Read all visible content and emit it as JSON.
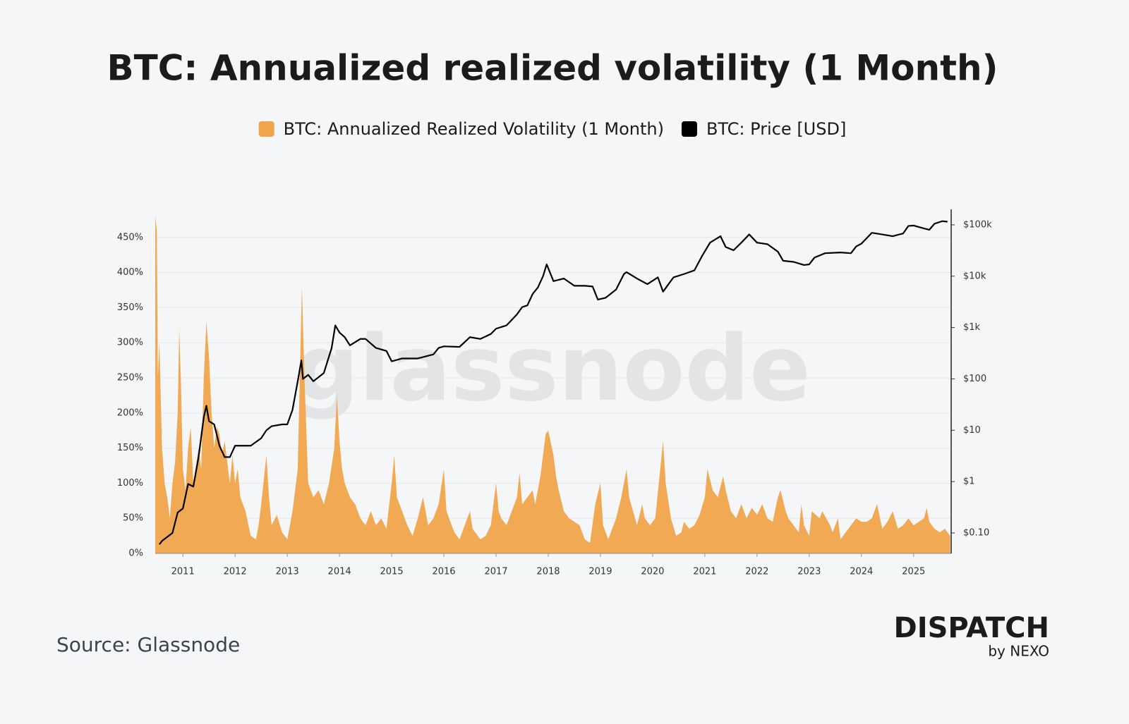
{
  "chart_data": {
    "type": "combo",
    "title": "BTC: Annualized realized volatility (1 Month)",
    "watermark": "glassnode",
    "source": "Source: Glassnode",
    "brand": "DISPATCH",
    "brand_sub": "by NEXO",
    "xlim": [
      2010.47,
      2025.72
    ],
    "xticks": [
      2011,
      2012,
      2013,
      2014,
      2015,
      2016,
      2017,
      2018,
      2019,
      2020,
      2021,
      2022,
      2023,
      2024,
      2025
    ],
    "ylim": [
      0,
      490
    ],
    "yticks": [
      {
        "value": 0,
        "label": "0%"
      },
      {
        "value": 50,
        "label": "50%"
      },
      {
        "value": 100,
        "label": "100%"
      },
      {
        "value": 150,
        "label": "150%"
      },
      {
        "value": 200,
        "label": "200%"
      },
      {
        "value": 250,
        "label": "250%"
      },
      {
        "value": 300,
        "label": "300%"
      },
      {
        "value": 350,
        "label": "350%"
      },
      {
        "value": 400,
        "label": "400%"
      },
      {
        "value": 450,
        "label": "450%"
      }
    ],
    "y2lim": [
      0.04,
      200000
    ],
    "y2scale": "log",
    "y2ticks": [
      {
        "value": 0.1,
        "label": "$0.10"
      },
      {
        "value": 1,
        "label": "$1"
      },
      {
        "value": 10,
        "label": "$10"
      },
      {
        "value": 100,
        "label": "$100"
      },
      {
        "value": 1000,
        "label": "$1k"
      },
      {
        "value": 10000,
        "label": "$10k"
      },
      {
        "value": 100000,
        "label": "$100k"
      }
    ],
    "grid": true,
    "series": [
      {
        "name": "BTC: Annualized Realized Volatility (1 Month)",
        "type": "area",
        "color": "#f0a54a",
        "x": [
          2010.47,
          2010.5,
          2010.52,
          2010.55,
          2010.6,
          2010.65,
          2010.7,
          2010.75,
          2010.8,
          2010.85,
          2010.9,
          2010.93,
          2010.96,
          2011.0,
          2011.05,
          2011.1,
          2011.15,
          2011.2,
          2011.3,
          2011.35,
          2011.4,
          2011.45,
          2011.5,
          2011.55,
          2011.6,
          2011.65,
          2011.7,
          2011.75,
          2011.8,
          2011.85,
          2011.9,
          2011.95,
          2012.0,
          2012.05,
          2012.1,
          2012.2,
          2012.3,
          2012.4,
          2012.45,
          2012.5,
          2012.6,
          2012.65,
          2012.7,
          2012.8,
          2012.9,
          2013.0,
          2013.1,
          2013.2,
          2013.28,
          2013.33,
          2013.4,
          2013.5,
          2013.6,
          2013.7,
          2013.8,
          2013.9,
          2013.95,
          2014.0,
          2014.05,
          2014.1,
          2014.2,
          2014.3,
          2014.4,
          2014.5,
          2014.6,
          2014.7,
          2014.8,
          2014.9,
          2015.0,
          2015.05,
          2015.1,
          2015.2,
          2015.3,
          2015.4,
          2015.5,
          2015.6,
          2015.7,
          2015.8,
          2015.9,
          2016.0,
          2016.05,
          2016.2,
          2016.3,
          2016.4,
          2016.5,
          2016.55,
          2016.7,
          2016.8,
          2016.9,
          2017.0,
          2017.05,
          2017.1,
          2017.2,
          2017.3,
          2017.4,
          2017.45,
          2017.5,
          2017.6,
          2017.7,
          2017.75,
          2017.85,
          2017.95,
          2018.0,
          2018.1,
          2018.15,
          2018.2,
          2018.3,
          2018.4,
          2018.5,
          2018.6,
          2018.7,
          2018.8,
          2018.9,
          2019.0,
          2019.05,
          2019.15,
          2019.3,
          2019.4,
          2019.5,
          2019.55,
          2019.7,
          2019.8,
          2019.85,
          2019.95,
          2020.05,
          2020.2,
          2020.25,
          2020.35,
          2020.45,
          2020.55,
          2020.6,
          2020.7,
          2020.8,
          2020.9,
          2021.0,
          2021.05,
          2021.15,
          2021.25,
          2021.35,
          2021.4,
          2021.5,
          2021.6,
          2021.7,
          2021.8,
          2021.9,
          2022.0,
          2022.1,
          2022.2,
          2022.3,
          2022.4,
          2022.45,
          2022.55,
          2022.6,
          2022.7,
          2022.8,
          2022.85,
          2022.9,
          2023.0,
          2023.05,
          2023.2,
          2023.25,
          2023.4,
          2023.45,
          2023.55,
          2023.6,
          2023.7,
          2023.8,
          2023.9,
          2024.0,
          2024.1,
          2024.2,
          2024.3,
          2024.4,
          2024.5,
          2024.6,
          2024.7,
          2024.8,
          2024.9,
          2025.0,
          2025.1,
          2025.2,
          2025.25,
          2025.3,
          2025.4,
          2025.5,
          2025.6,
          2025.7
        ],
        "values": [
          480,
          460,
          250,
          300,
          150,
          100,
          80,
          50,
          100,
          130,
          200,
          320,
          250,
          120,
          90,
          150,
          180,
          100,
          150,
          120,
          250,
          330,
          280,
          200,
          150,
          180,
          170,
          140,
          160,
          130,
          100,
          140,
          100,
          120,
          80,
          60,
          25,
          20,
          40,
          70,
          140,
          80,
          40,
          55,
          30,
          20,
          60,
          120,
          380,
          250,
          100,
          80,
          90,
          70,
          100,
          150,
          225,
          160,
          120,
          100,
          80,
          70,
          50,
          40,
          60,
          40,
          50,
          35,
          100,
          140,
          80,
          60,
          40,
          25,
          50,
          80,
          40,
          50,
          70,
          120,
          60,
          30,
          20,
          40,
          60,
          35,
          20,
          25,
          40,
          100,
          60,
          50,
          40,
          60,
          80,
          115,
          70,
          80,
          90,
          70,
          110,
          170,
          175,
          140,
          110,
          90,
          60,
          50,
          45,
          40,
          20,
          15,
          70,
          100,
          40,
          20,
          50,
          80,
          120,
          80,
          40,
          70,
          50,
          40,
          50,
          160,
          100,
          50,
          25,
          30,
          45,
          35,
          40,
          55,
          80,
          120,
          90,
          80,
          110,
          90,
          60,
          50,
          70,
          50,
          65,
          55,
          70,
          50,
          45,
          80,
          90,
          60,
          50,
          40,
          30,
          70,
          40,
          25,
          60,
          50,
          60,
          40,
          30,
          50,
          20,
          30,
          40,
          50,
          45,
          45,
          50,
          70,
          35,
          45,
          60,
          35,
          40,
          50,
          40,
          45,
          50,
          65,
          45,
          35,
          30,
          35,
          25
        ]
      },
      {
        "name": "BTC: Price [USD]",
        "type": "line",
        "color": "#000000",
        "axis": "y2",
        "x": [
          2010.55,
          2010.6,
          2010.8,
          2010.9,
          2011.0,
          2011.1,
          2011.2,
          2011.3,
          2011.4,
          2011.45,
          2011.5,
          2011.6,
          2011.7,
          2011.8,
          2011.9,
          2012.0,
          2012.1,
          2012.3,
          2012.5,
          2012.6,
          2012.7,
          2012.9,
          2013.0,
          2013.1,
          2013.2,
          2013.27,
          2013.3,
          2013.4,
          2013.5,
          2013.7,
          2013.85,
          2013.92,
          2014.0,
          2014.1,
          2014.2,
          2014.4,
          2014.5,
          2014.7,
          2014.9,
          2015.0,
          2015.2,
          2015.5,
          2015.8,
          2015.9,
          2016.0,
          2016.3,
          2016.5,
          2016.7,
          2016.9,
          2017.0,
          2017.2,
          2017.4,
          2017.5,
          2017.6,
          2017.7,
          2017.8,
          2017.9,
          2017.97,
          2018.1,
          2018.3,
          2018.5,
          2018.7,
          2018.85,
          2018.95,
          2019.1,
          2019.3,
          2019.45,
          2019.5,
          2019.7,
          2019.9,
          2020.1,
          2020.2,
          2020.4,
          2020.6,
          2020.8,
          2020.95,
          2021.1,
          2021.3,
          2021.4,
          2021.55,
          2021.7,
          2021.85,
          2022.0,
          2022.2,
          2022.4,
          2022.5,
          2022.7,
          2022.9,
          2023.0,
          2023.1,
          2023.3,
          2023.6,
          2023.8,
          2023.9,
          2024.0,
          2024.2,
          2024.4,
          2024.6,
          2024.8,
          2024.9,
          2025.0,
          2025.2,
          2025.3,
          2025.4,
          2025.55,
          2025.65
        ],
        "values": [
          0.06,
          0.07,
          0.1,
          0.25,
          0.3,
          0.9,
          0.8,
          3,
          18,
          30,
          15,
          13,
          5,
          3,
          3,
          5,
          5,
          5,
          7,
          10,
          12,
          13,
          13,
          25,
          90,
          230,
          100,
          120,
          90,
          130,
          400,
          1100,
          800,
          650,
          450,
          600,
          600,
          400,
          350,
          220,
          250,
          250,
          300,
          400,
          430,
          420,
          650,
          600,
          750,
          950,
          1100,
          1800,
          2500,
          2700,
          4500,
          6000,
          10000,
          17000,
          8000,
          9000,
          6500,
          6500,
          6300,
          3500,
          3800,
          5500,
          11000,
          12000,
          9000,
          7000,
          9500,
          5000,
          9500,
          11000,
          13000,
          25000,
          45000,
          60000,
          37000,
          32000,
          45000,
          65000,
          45000,
          42000,
          30000,
          20000,
          19000,
          16500,
          17000,
          23000,
          28000,
          29000,
          28000,
          38000,
          43000,
          70000,
          65000,
          60000,
          68000,
          95000,
          97000,
          85000,
          80000,
          105000,
          118000,
          115000
        ]
      }
    ]
  }
}
